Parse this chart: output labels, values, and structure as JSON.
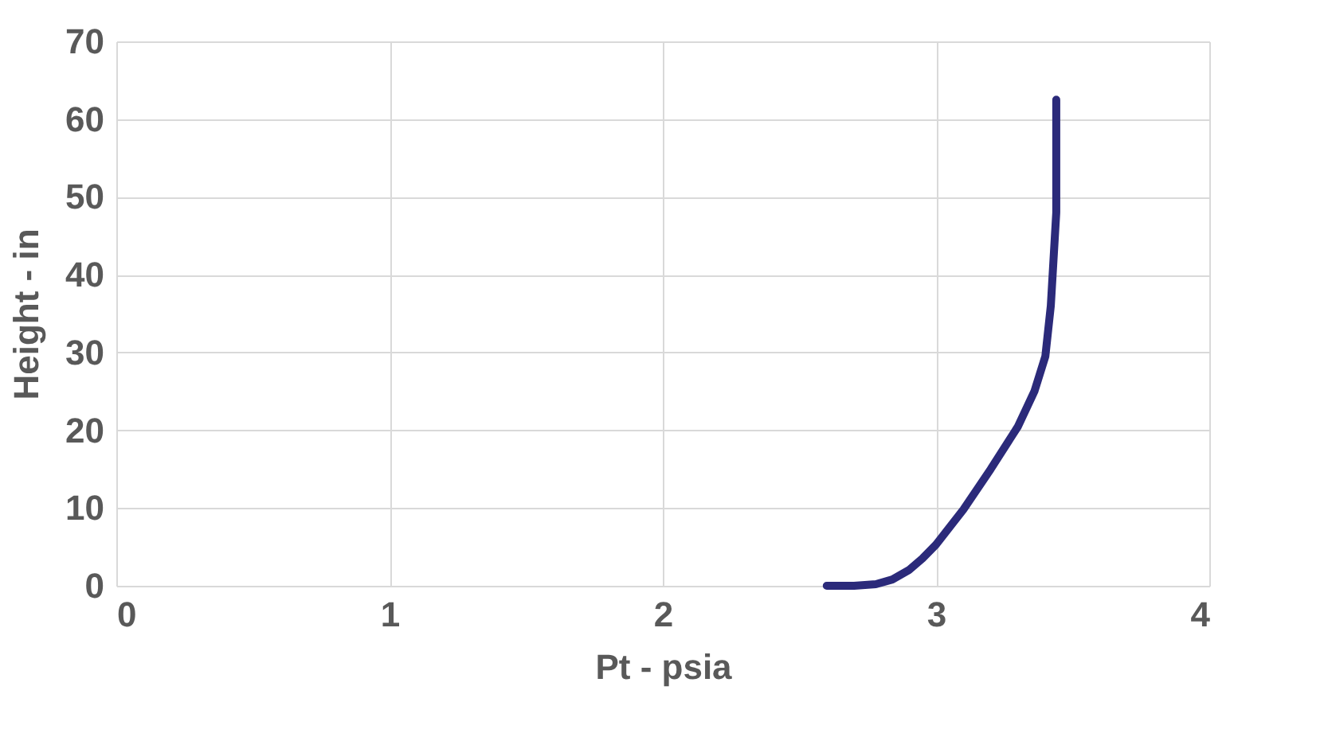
{
  "chart_data": {
    "type": "line",
    "xlabel": "Pt - psia",
    "ylabel": "Height - in",
    "x": [
      2.6,
      2.7,
      2.78,
      2.84,
      2.9,
      2.95,
      3.0,
      3.1,
      3.2,
      3.3,
      3.36,
      3.4,
      3.42,
      3.43,
      3.44,
      3.44,
      3.44
    ],
    "series": [
      {
        "color": "#2b2a7a",
        "values": [
          0,
          0,
          0.2,
          0.8,
          2,
          3.5,
          5.3,
          9.8,
          15,
          20.5,
          25,
          29.5,
          36,
          42,
          48,
          55,
          62.5
        ]
      }
    ],
    "xlim": [
      0,
      4
    ],
    "ylim": [
      0,
      70
    ],
    "xticks": [
      0,
      1,
      2,
      3,
      4
    ],
    "yticks": [
      0,
      10,
      20,
      30,
      40,
      50,
      60,
      70
    ],
    "grid": true,
    "marker": "none",
    "line_style": "solid"
  }
}
